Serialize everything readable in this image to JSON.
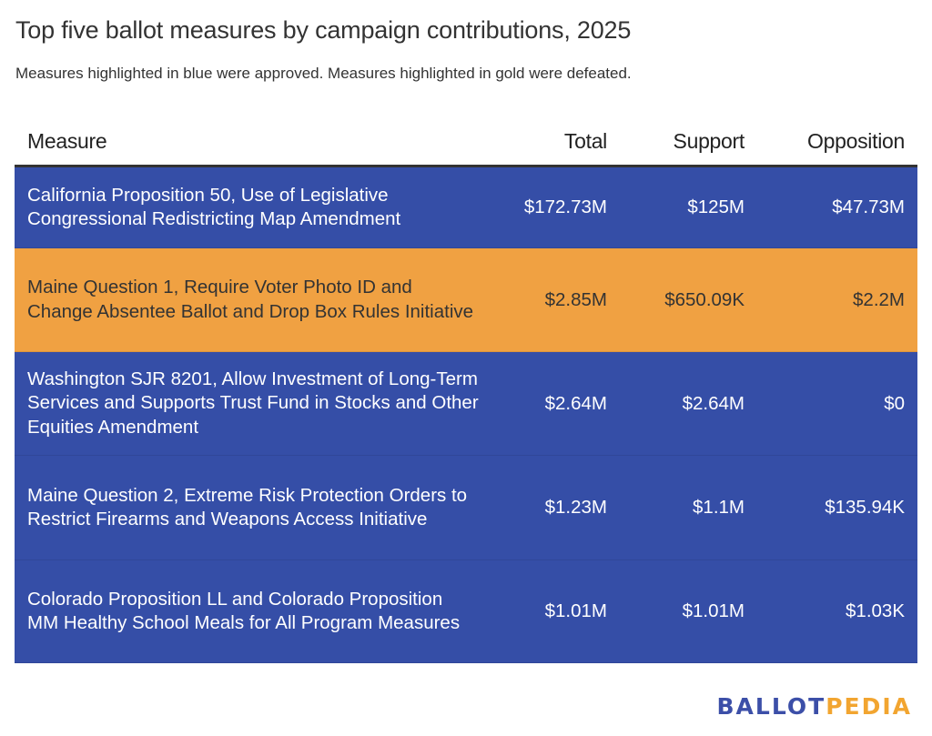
{
  "title": "Top five ballot measures by campaign contributions, 2025",
  "subtitle": "Measures highlighted in blue were approved. Measures highlighted in gold were defeated.",
  "colors": {
    "approved": "#354ea7",
    "defeated": "#f0a142",
    "header_rule": "#333333",
    "logo_ballot": "#3c4fa8",
    "logo_pedia": "#f2a530"
  },
  "chart_data": {
    "type": "table",
    "title": "Top five ballot measures by campaign contributions, 2025",
    "subtitle": "Measures highlighted in blue were approved. Measures highlighted in gold were defeated.",
    "columns": [
      "Measure",
      "Total",
      "Support",
      "Opposition"
    ],
    "rows": [
      {
        "measure": "California Proposition 50, Use of Legislative Congressional Redistricting Map Amendment",
        "total": "$172.73M",
        "support": "$125M",
        "opposition": "$47.73M",
        "outcome": "approved"
      },
      {
        "measure": "Maine Question 1, Require Voter Photo ID and Change Absentee Ballot and Drop Box Rules Initiative",
        "total": "$2.85M",
        "support": "$650.09K",
        "opposition": "$2.2M",
        "outcome": "defeated"
      },
      {
        "measure": "Washington SJR 8201, Allow Investment of Long-Term Services and Supports Trust Fund in Stocks and Other Equities Amendment",
        "total": "$2.64M",
        "support": "$2.64M",
        "opposition": "$0",
        "outcome": "approved"
      },
      {
        "measure": "Maine Question 2, Extreme Risk Protection Orders to Restrict Firearms and Weapons Access Initiative",
        "total": "$1.23M",
        "support": "$1.1M",
        "opposition": "$135.94K",
        "outcome": "approved"
      },
      {
        "measure": "Colorado Proposition LL and Colorado Proposition MM Healthy School Meals for All Program Measures",
        "total": "$1.01M",
        "support": "$1.01M",
        "opposition": "$1.03K",
        "outcome": "approved"
      }
    ]
  },
  "logo": {
    "part1": "BALLOT",
    "part2": "PEDIA"
  }
}
